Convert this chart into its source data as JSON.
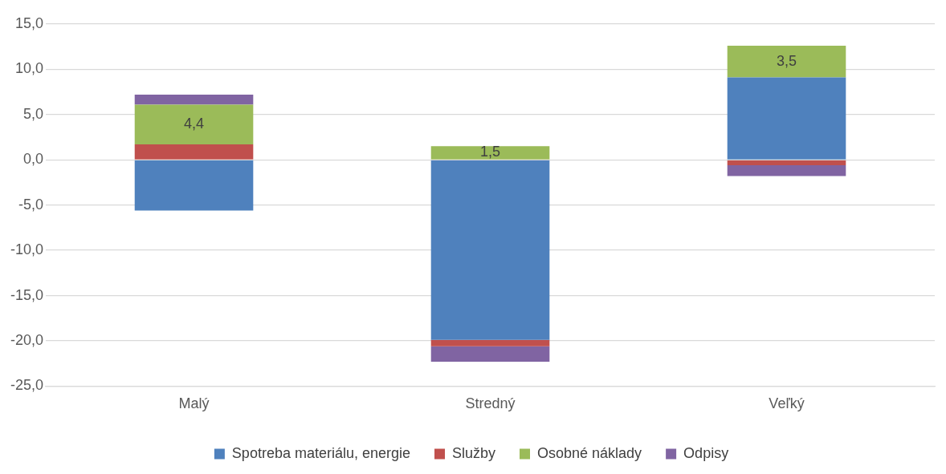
{
  "chart_data": {
    "type": "bar",
    "stacked": true,
    "categories": [
      "Malý",
      "Stredný",
      "Veľký"
    ],
    "series": [
      {
        "name": "Spotreba materiálu, energie",
        "color": "#4f81bd",
        "values": [
          -5.6,
          -19.9,
          9.1
        ]
      },
      {
        "name": "Služby",
        "color": "#c0504d",
        "values": [
          1.7,
          -0.7,
          -0.6
        ]
      },
      {
        "name": "Osobné náklady",
        "color": "#9bbb59",
        "values": [
          4.4,
          1.5,
          3.5
        ],
        "value_labels": [
          "4,4",
          "1,5",
          "3,5"
        ]
      },
      {
        "name": "Odpisy",
        "color": "#8064a2",
        "values": [
          1.1,
          -1.7,
          -1.2
        ]
      }
    ],
    "ylim": [
      -25,
      15
    ],
    "yticks": [
      {
        "value": -25,
        "label": "-25,0"
      },
      {
        "value": -20,
        "label": "-20,0"
      },
      {
        "value": -15,
        "label": "-15,0"
      },
      {
        "value": -10,
        "label": "-10,0"
      },
      {
        "value": -5,
        "label": "-5,0"
      },
      {
        "value": 0,
        "label": "0,0"
      },
      {
        "value": 5,
        "label": "5,0"
      },
      {
        "value": 10,
        "label": "10,0"
      },
      {
        "value": 15,
        "label": "15,0"
      }
    ],
    "grid": "y",
    "legend": "bottom"
  }
}
